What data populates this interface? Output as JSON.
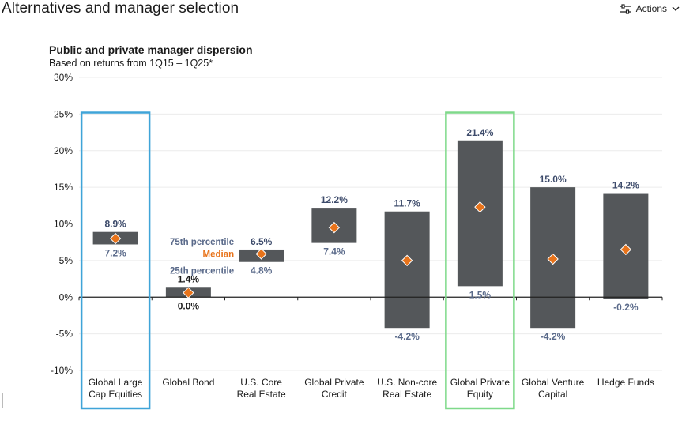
{
  "header": {
    "title": "Alternatives and manager selection",
    "actions_label": "Actions"
  },
  "chart_data": {
    "type": "bar",
    "title": "Public and private manager dispersion",
    "subtitle": "Based on returns from 1Q15 – 1Q25*",
    "ylim": [
      -10,
      30
    ],
    "yticks": [
      "30%",
      "25%",
      "20%",
      "15%",
      "10%",
      "5%",
      "0%",
      "-5%",
      "-10%"
    ],
    "ytick_values": [
      30,
      25,
      20,
      15,
      10,
      5,
      0,
      -5,
      -10
    ],
    "categories": [
      [
        "Global Large",
        "Cap Equities"
      ],
      [
        "Global Bond"
      ],
      [
        "U.S. Core",
        "Real Estate"
      ],
      [
        "Global Private",
        "Credit"
      ],
      [
        "U.S. Non-core",
        "Real Estate"
      ],
      [
        "Global Private",
        "Equity"
      ],
      [
        "Global Venture",
        "Capital"
      ],
      [
        "Hedge Funds"
      ]
    ],
    "series": [
      {
        "name": "75th percentile",
        "values": [
          8.9,
          1.4,
          6.5,
          12.2,
          11.7,
          21.4,
          15.0,
          14.2
        ],
        "labels": [
          "8.9%",
          "1.4%",
          "6.5%",
          "12.2%",
          "11.7%",
          "21.4%",
          "15.0%",
          "14.2%"
        ]
      },
      {
        "name": "25th percentile",
        "values": [
          7.2,
          0.0,
          4.8,
          7.4,
          -4.2,
          1.5,
          -4.2,
          -0.2
        ],
        "labels": [
          "7.2%",
          "0.0%",
          "4.8%",
          "7.4%",
          "-4.2%",
          "1.5%",
          "-4.2%",
          "-0.2%"
        ]
      },
      {
        "name": "Median",
        "values": [
          8.0,
          0.6,
          5.9,
          9.5,
          5.0,
          12.3,
          5.2,
          6.5
        ]
      }
    ],
    "annotations": {
      "upper": "75th percentile",
      "median": "Median",
      "lower": "25th percentile"
    },
    "highlighted_categories": [
      0,
      5
    ],
    "grid": true,
    "colors": {
      "bar": "#54575a",
      "median_marker": "#e8731a",
      "upper_label": "#3d4b6b",
      "lower_label": "#5a6a8a",
      "highlight_blue": "#3fa4d8",
      "highlight_green": "#7fd98a",
      "grid": "#ececec",
      "median_text": "#e8731a"
    }
  }
}
